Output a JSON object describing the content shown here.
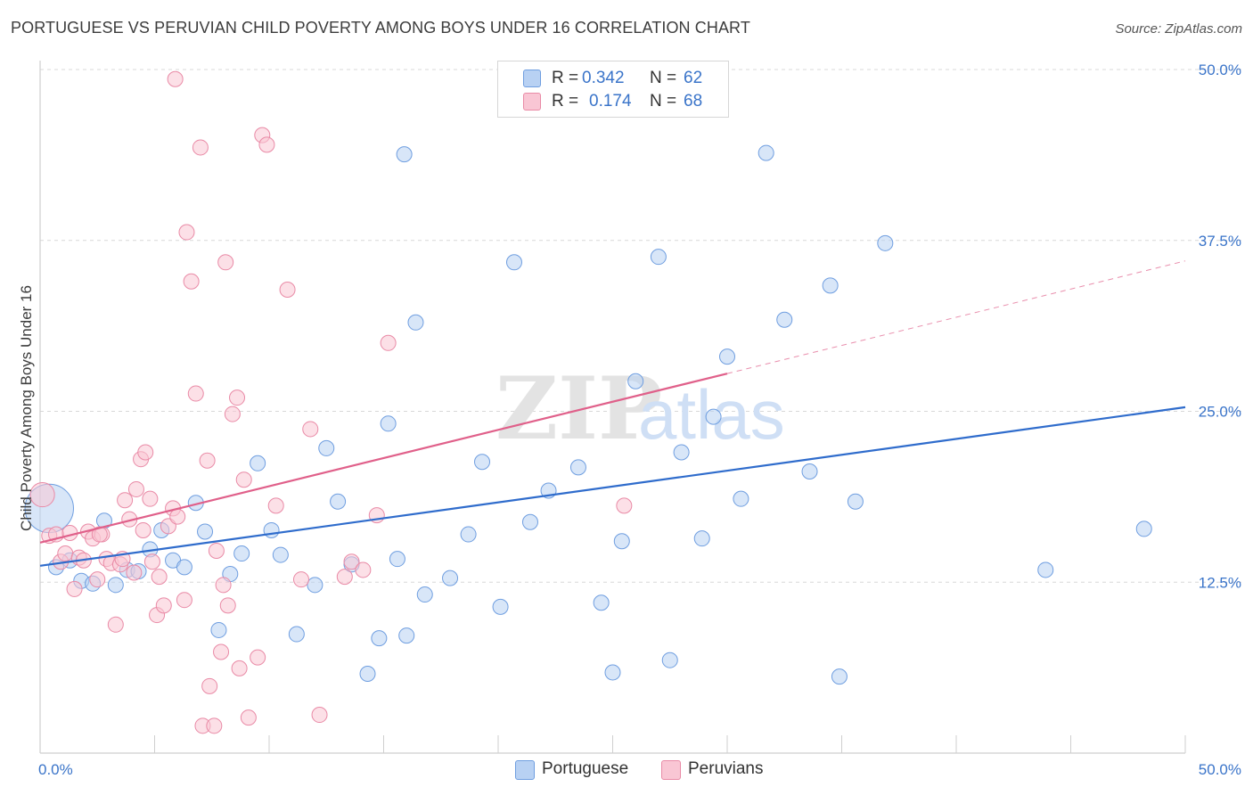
{
  "header": {
    "title": "PORTUGUESE VS PERUVIAN CHILD POVERTY AMONG BOYS UNDER 16 CORRELATION CHART",
    "source": "Source: ZipAtlas.com"
  },
  "legend_top": {
    "rows": [
      {
        "r_label": "R =",
        "r_value": "0.342",
        "n_label": "N =",
        "n_value": "62"
      },
      {
        "r_label": "R =",
        "r_value": "0.174",
        "n_label": "N =",
        "n_value": "68"
      }
    ]
  },
  "legend_bottom": {
    "items": [
      {
        "label": "Portuguese"
      },
      {
        "label": "Peruvians"
      }
    ]
  },
  "watermark": {
    "zip": "ZIP",
    "atlas": "atlas"
  },
  "colors": {
    "portuguese_fill": "#b8d1f3",
    "portuguese_stroke": "#6f9ee0",
    "portuguese_line": "#2f6ccc",
    "peruvians_fill": "#f9c6d4",
    "peruvians_stroke": "#e98aa6",
    "peruvians_line": "#e0608a",
    "axis_text": "#3a74c9",
    "grid": "#d8d8d8"
  },
  "chart_data": {
    "type": "scatter",
    "title": "PORTUGUESE VS PERUVIAN CHILD POVERTY AMONG BOYS UNDER 16 CORRELATION CHART",
    "xlabel": "",
    "ylabel": "Child Poverty Among Boys Under 16",
    "xlim": [
      0,
      50
    ],
    "ylim": [
      0,
      50
    ],
    "x_tick_labels": [
      "0.0%",
      "50.0%"
    ],
    "y_ticks": [
      12.5,
      25.0,
      37.5,
      50.0
    ],
    "y_tick_labels": [
      "12.5%",
      "25.0%",
      "37.5%",
      "50.0%"
    ],
    "grid": true,
    "legend_position": "top-center",
    "series": [
      {
        "name": "Portuguese",
        "r": 0.342,
        "n": 62,
        "trend": {
          "x": [
            0,
            50
          ],
          "y": [
            13.7,
            25.3
          ],
          "dashed_after": null
        },
        "points": [
          [
            0.4,
            17.9,
            3.2
          ],
          [
            0.7,
            13.6,
            1
          ],
          [
            1.3,
            14.1,
            1
          ],
          [
            1.8,
            12.6,
            1
          ],
          [
            2.3,
            12.4,
            1
          ],
          [
            2.8,
            17.0,
            1
          ],
          [
            3.3,
            12.3,
            1
          ],
          [
            3.8,
            13.4,
            1
          ],
          [
            4.3,
            13.3,
            1
          ],
          [
            4.8,
            14.9,
            1
          ],
          [
            5.3,
            16.3,
            1
          ],
          [
            5.8,
            14.1,
            1
          ],
          [
            6.3,
            13.6,
            1
          ],
          [
            6.8,
            18.3,
            1
          ],
          [
            7.2,
            16.2,
            1
          ],
          [
            7.8,
            9.0,
            1
          ],
          [
            8.3,
            13.1,
            1
          ],
          [
            8.8,
            14.6,
            1
          ],
          [
            9.5,
            21.2,
            1
          ],
          [
            10.1,
            16.3,
            1
          ],
          [
            10.5,
            14.5,
            1
          ],
          [
            11.2,
            8.7,
            1
          ],
          [
            12.0,
            12.3,
            1
          ],
          [
            12.5,
            22.3,
            1
          ],
          [
            13.0,
            18.4,
            1
          ],
          [
            13.6,
            13.8,
            1
          ],
          [
            14.3,
            5.8,
            1
          ],
          [
            14.8,
            8.4,
            1
          ],
          [
            15.2,
            24.1,
            1
          ],
          [
            15.6,
            14.2,
            1
          ],
          [
            15.9,
            43.8,
            1
          ],
          [
            16.0,
            8.6,
            1
          ],
          [
            16.4,
            31.5,
            1
          ],
          [
            16.8,
            11.6,
            1
          ],
          [
            17.9,
            12.8,
            1
          ],
          [
            18.7,
            16.0,
            1
          ],
          [
            19.3,
            21.3,
            1
          ],
          [
            20.1,
            10.7,
            1
          ],
          [
            20.7,
            35.9,
            1
          ],
          [
            21.4,
            16.9,
            1
          ],
          [
            22.2,
            19.2,
            1
          ],
          [
            23.5,
            20.9,
            1
          ],
          [
            24.5,
            11.0,
            1
          ],
          [
            25.0,
            5.9,
            1
          ],
          [
            25.4,
            15.5,
            1
          ],
          [
            26.0,
            27.2,
            1
          ],
          [
            27.0,
            36.3,
            1
          ],
          [
            27.5,
            6.8,
            1
          ],
          [
            28.0,
            22.0,
            1
          ],
          [
            28.9,
            15.7,
            1
          ],
          [
            29.4,
            24.6,
            1
          ],
          [
            30.0,
            29.0,
            1
          ],
          [
            30.6,
            18.6,
            1
          ],
          [
            31.7,
            43.9,
            1
          ],
          [
            32.5,
            31.7,
            1
          ],
          [
            33.6,
            20.6,
            1
          ],
          [
            34.5,
            34.2,
            1
          ],
          [
            34.9,
            5.6,
            1
          ],
          [
            35.6,
            18.4,
            1
          ],
          [
            36.9,
            37.3,
            1
          ],
          [
            43.9,
            13.4,
            1
          ],
          [
            48.2,
            16.4,
            1
          ]
        ]
      },
      {
        "name": "Peruvians",
        "r": 0.174,
        "n": 68,
        "trend": {
          "x": [
            0,
            50
          ],
          "y": [
            15.4,
            36.0
          ],
          "dashed_after": 30.0
        },
        "points": [
          [
            0.1,
            18.9,
            1.6
          ],
          [
            0.4,
            15.9,
            1
          ],
          [
            0.7,
            16.0,
            1
          ],
          [
            0.9,
            14.0,
            1
          ],
          [
            1.1,
            14.6,
            1
          ],
          [
            1.3,
            16.1,
            1
          ],
          [
            1.5,
            12.0,
            1
          ],
          [
            1.7,
            14.3,
            1
          ],
          [
            1.9,
            14.1,
            1
          ],
          [
            2.1,
            16.2,
            1
          ],
          [
            2.3,
            15.7,
            1
          ],
          [
            2.5,
            12.7,
            1
          ],
          [
            2.7,
            16.0,
            1
          ],
          [
            2.9,
            14.2,
            1
          ],
          [
            3.1,
            13.9,
            1
          ],
          [
            3.3,
            9.4,
            1
          ],
          [
            3.5,
            13.8,
            1
          ],
          [
            3.6,
            14.2,
            1
          ],
          [
            3.7,
            18.5,
            1
          ],
          [
            3.9,
            17.1,
            1
          ],
          [
            4.1,
            13.2,
            1
          ],
          [
            4.2,
            19.3,
            1
          ],
          [
            4.4,
            21.5,
            1
          ],
          [
            4.5,
            16.3,
            1
          ],
          [
            4.6,
            22.0,
            1
          ],
          [
            4.8,
            18.6,
            1
          ],
          [
            4.9,
            14.0,
            1
          ],
          [
            5.1,
            10.1,
            1
          ],
          [
            5.2,
            12.9,
            1
          ],
          [
            5.4,
            10.8,
            1
          ],
          [
            5.6,
            16.6,
            1
          ],
          [
            5.8,
            17.9,
            1
          ],
          [
            5.9,
            49.3,
            1
          ],
          [
            6.0,
            17.3,
            1
          ],
          [
            6.3,
            11.2,
            1
          ],
          [
            6.4,
            38.1,
            1
          ],
          [
            6.6,
            34.5,
            1
          ],
          [
            6.8,
            26.3,
            1
          ],
          [
            7.0,
            44.3,
            1
          ],
          [
            7.1,
            2.0,
            1
          ],
          [
            7.3,
            21.4,
            1
          ],
          [
            7.4,
            4.9,
            1
          ],
          [
            7.6,
            2.0,
            1
          ],
          [
            7.7,
            14.8,
            1
          ],
          [
            7.9,
            7.4,
            1
          ],
          [
            8.0,
            12.3,
            1
          ],
          [
            8.1,
            35.9,
            1
          ],
          [
            8.2,
            10.8,
            1
          ],
          [
            8.4,
            24.8,
            1
          ],
          [
            8.6,
            26.0,
            1
          ],
          [
            8.7,
            6.2,
            1
          ],
          [
            8.9,
            20.0,
            1
          ],
          [
            9.1,
            2.6,
            1
          ],
          [
            9.5,
            7.0,
            1
          ],
          [
            9.7,
            45.2,
            1
          ],
          [
            9.9,
            44.5,
            1
          ],
          [
            10.3,
            18.1,
            1
          ],
          [
            10.8,
            33.9,
            1
          ],
          [
            11.4,
            12.7,
            1
          ],
          [
            11.8,
            23.7,
            1
          ],
          [
            12.2,
            2.8,
            1
          ],
          [
            13.3,
            12.9,
            1
          ],
          [
            13.6,
            14.0,
            1
          ],
          [
            14.1,
            13.4,
            1
          ],
          [
            14.7,
            17.4,
            1
          ],
          [
            15.2,
            30.0,
            1
          ],
          [
            25.5,
            18.1,
            1
          ],
          [
            2.6,
            16.0,
            1
          ]
        ]
      }
    ]
  }
}
